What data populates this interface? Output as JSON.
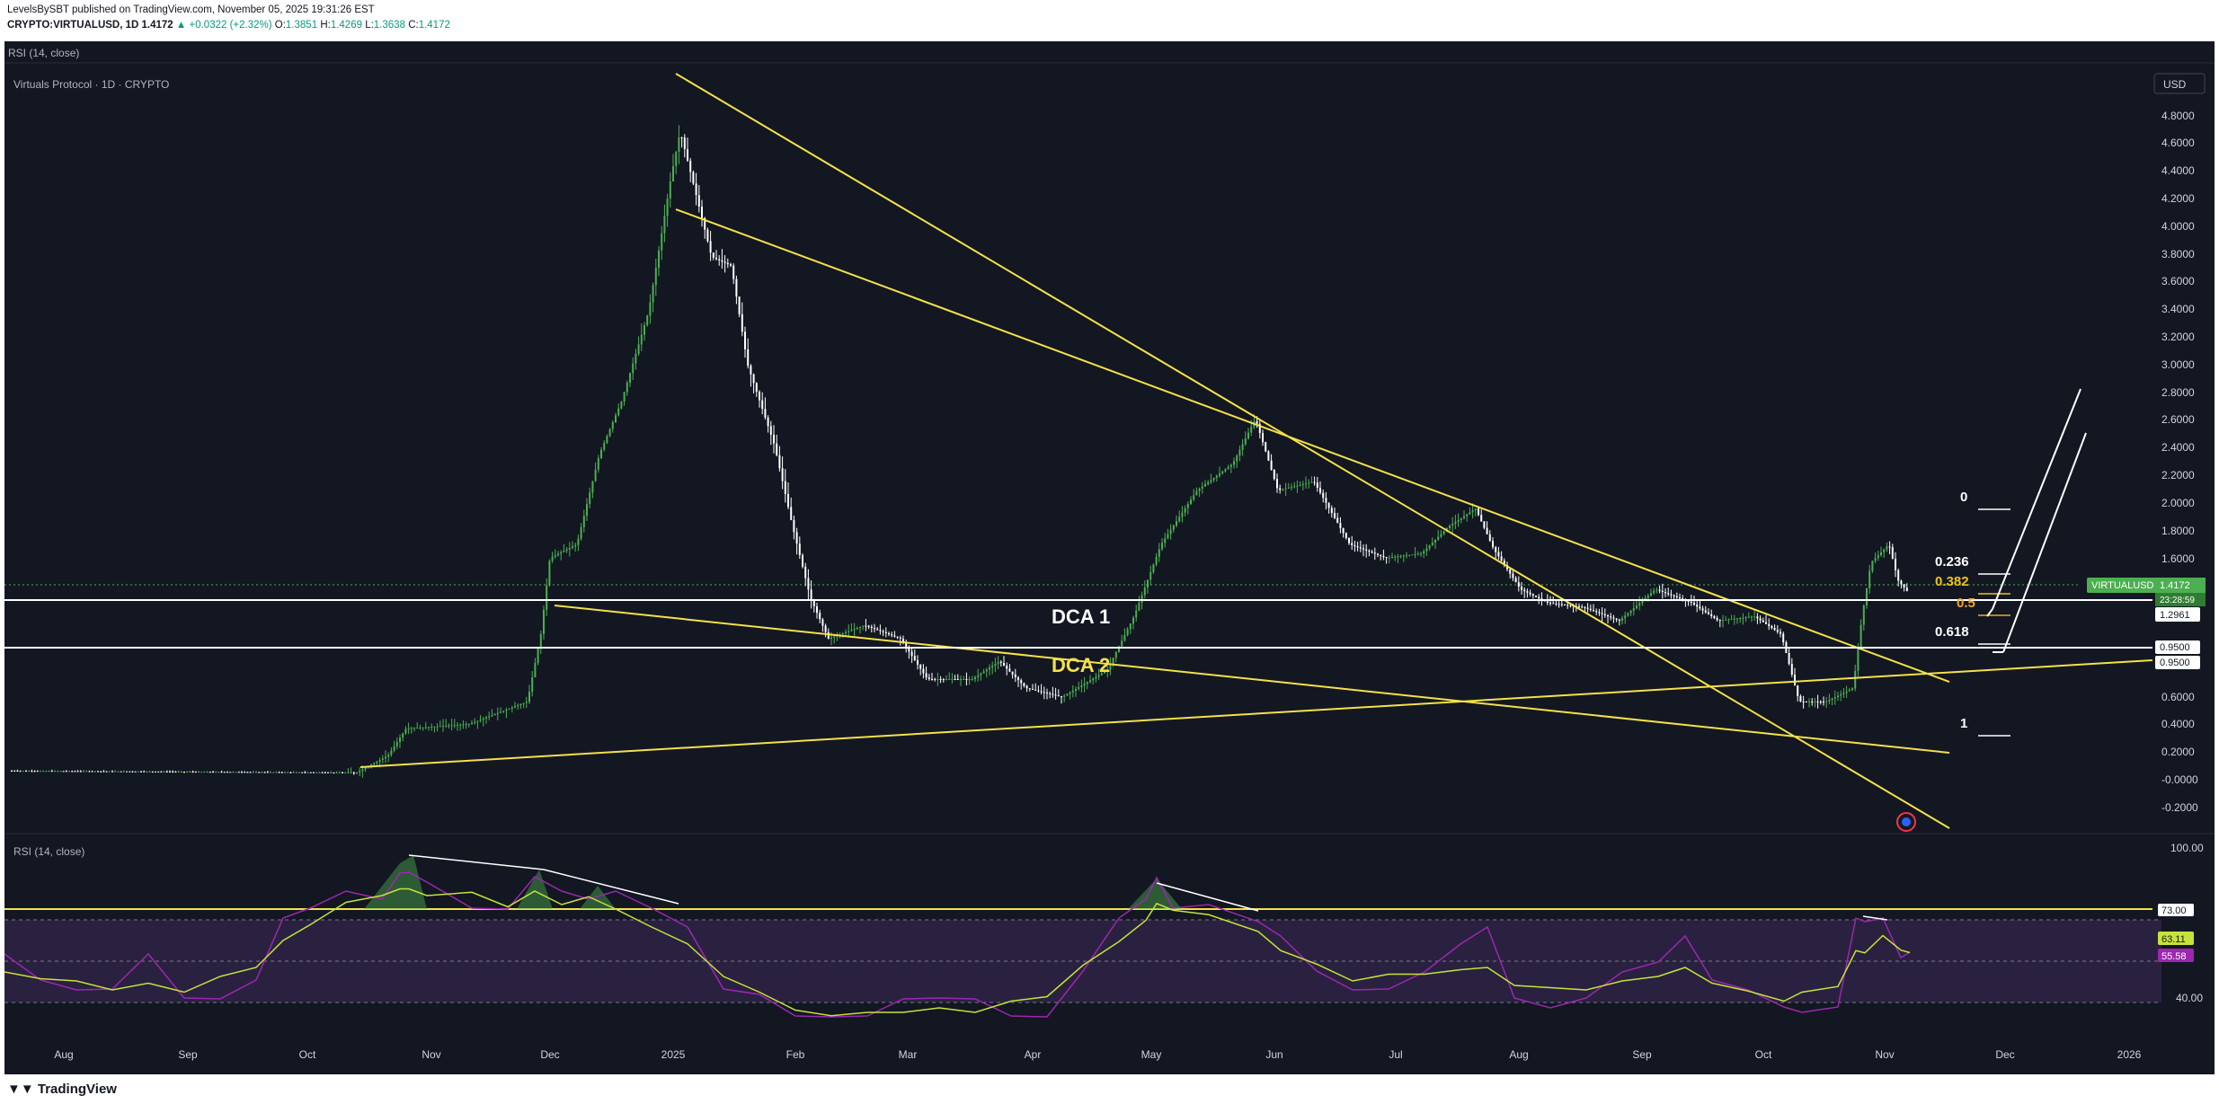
{
  "header": {
    "publisher_line": "LevelsBySBT published on TradingView.com, November 05, 2025 19:31:26 EST",
    "symbol": "CRYPTO:VIRTUALUSD, 1D",
    "last": "1.4172",
    "change": "▲ +0.0322 (+2.32%)",
    "o_label": "O:",
    "o": "1.3851",
    "h_label": "H:",
    "h": "1.4269",
    "l_label": "L:",
    "l": "1.3638",
    "c_label": "C:",
    "c": "1.4172"
  },
  "top_indicator_label": "RSI (14, close)",
  "chart_title": "Virtuals Protocol · 1D · CRYPTO",
  "currency": "USD",
  "price_axis_ticks": [
    "4.8000",
    "4.6000",
    "4.4000",
    "4.2000",
    "4.0000",
    "3.8000",
    "3.6000",
    "3.4000",
    "3.2000",
    "3.0000",
    "2.8000",
    "2.6000",
    "2.4000",
    "2.2000",
    "2.0000",
    "1.8000",
    "1.6000",
    "0.6000",
    "0.4000",
    "0.2000",
    "-0.0000",
    "-0.2000"
  ],
  "price_labels": {
    "symbol_tag": "VIRTUALUSD",
    "last_price": "1.4172",
    "countdown": "23:28:59",
    "level_dca1": "1.2961",
    "level_dca2a": "0.9500",
    "level_dca2b": "0.9500"
  },
  "annotations": {
    "dca1": "DCA 1",
    "dca2": "DCA 2"
  },
  "fib_levels": [
    {
      "label": "0",
      "color": "#ffffff"
    },
    {
      "label": "0.236",
      "color": "#ffffff"
    },
    {
      "label": "0.382",
      "color": "#f0c419"
    },
    {
      "label": "0.5",
      "color": "#f5a623"
    },
    {
      "label": "0.618",
      "color": "#ffffff"
    },
    {
      "label": "1",
      "color": "#ffffff"
    }
  ],
  "rsi_panel": {
    "label": "RSI (14, close)",
    "axis_ticks": [
      "100.00",
      "40.00"
    ],
    "level_73": "73.00",
    "ma_value": "63.11",
    "rsi_value": "55.58"
  },
  "time_axis": [
    "Aug",
    "Sep",
    "Oct",
    "Nov",
    "Dec",
    "2025",
    "Feb",
    "Mar",
    "Apr",
    "May",
    "Jun",
    "Jul",
    "Aug",
    "Sep",
    "Oct",
    "Nov",
    "Dec",
    "2026"
  ],
  "footer": {
    "brand": "TradingView"
  },
  "colors": {
    "background": "#131722",
    "trendline": "#f5e14a",
    "up": "#4caf50",
    "down": "#ffffff",
    "rsi": "#9c27b0",
    "rsi_ma": "#c6e33a",
    "rsi_band": "#2a2140"
  },
  "chart_data": {
    "type": "line",
    "title": "Virtuals Protocol · 1D · CRYPTO",
    "x": [
      "2024-08",
      "2024-09",
      "2024-10",
      "2024-11",
      "2024-12",
      "2025-01",
      "2025-02",
      "2025-03",
      "2025-04",
      "2025-05",
      "2025-06",
      "2025-07",
      "2025-08",
      "2025-09",
      "2025-10",
      "2025-11"
    ],
    "series": [
      {
        "name": "VIRTUALUSD",
        "values": [
          0.03,
          0.03,
          0.05,
          0.4,
          1.5,
          4.7,
          2.5,
          0.95,
          0.6,
          1.6,
          2.55,
          1.6,
          1.25,
          1.1,
          0.95,
          1.42
        ]
      }
    ],
    "ylim": [
      -0.25,
      5.0
    ],
    "horizontal_levels": [
      1.2961,
      0.95
    ],
    "rsi": {
      "ylim": [
        20,
        100
      ],
      "level": 73,
      "last_rsi": 55.58,
      "last_ma": 63.11
    }
  }
}
